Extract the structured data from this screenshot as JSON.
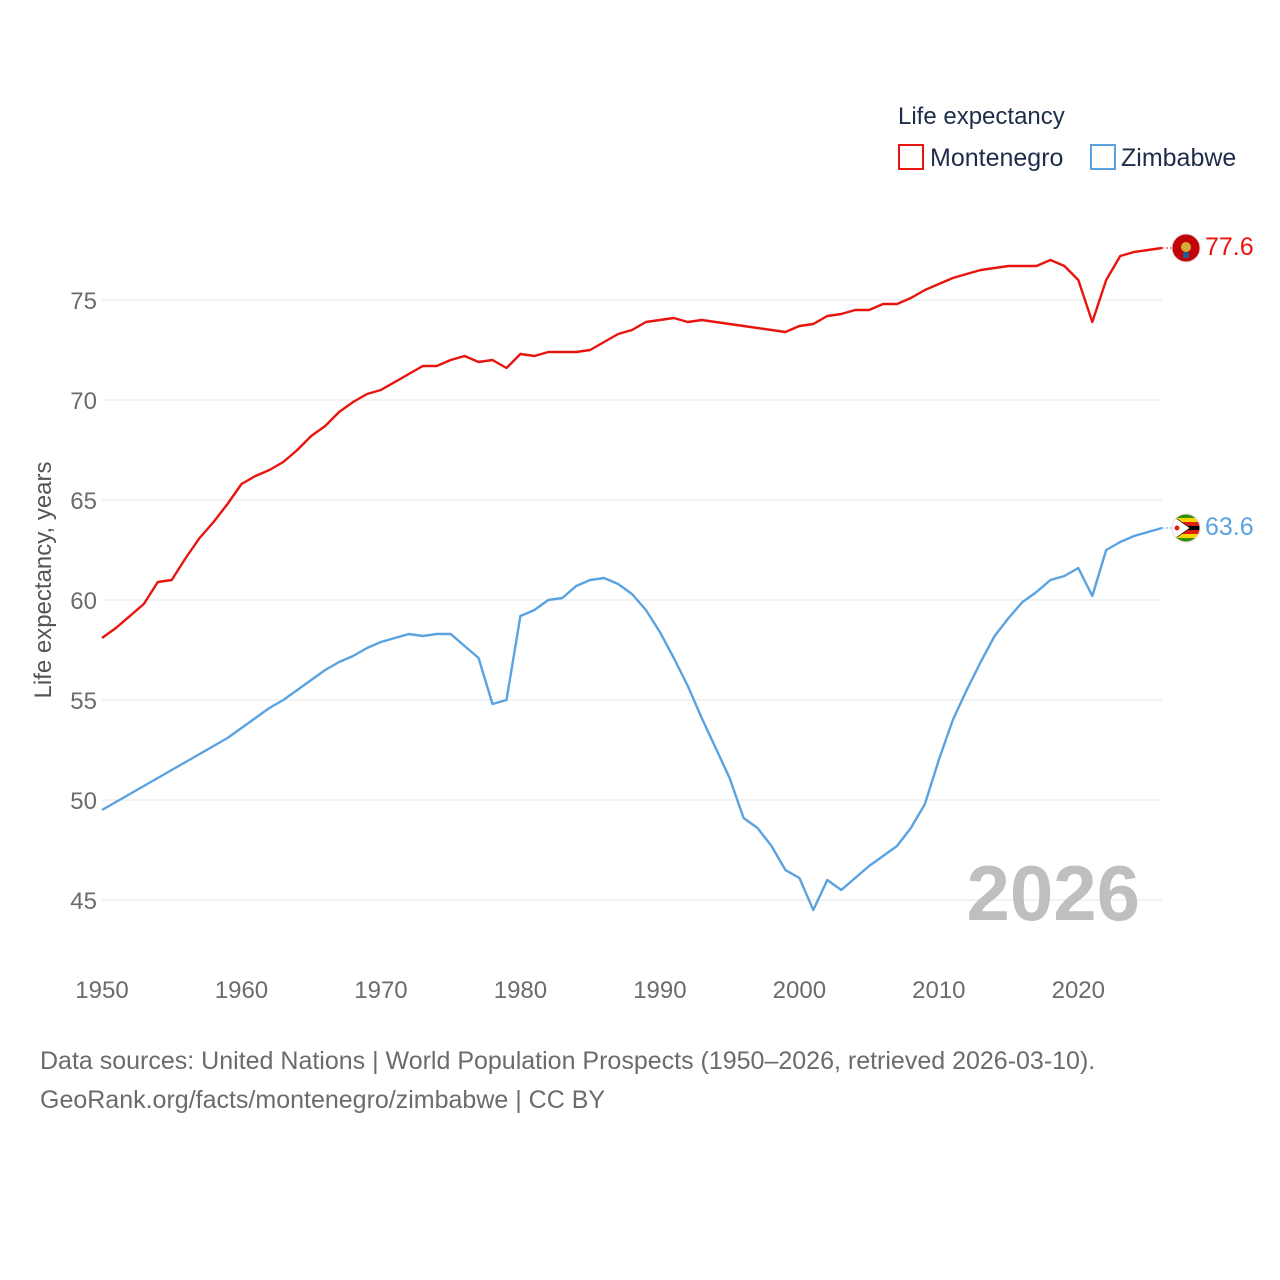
{
  "chart_data": {
    "type": "line",
    "legend_title": "Life expectancy",
    "ylabel": "Life expectancy, years",
    "xlim": [
      1950,
      2026
    ],
    "ylim": [
      44,
      79
    ],
    "yticks": [
      45,
      50,
      55,
      60,
      65,
      70,
      75
    ],
    "xticks": [
      1950,
      1960,
      1970,
      1980,
      1990,
      2000,
      2010,
      2020
    ],
    "current_year": "2026",
    "x": [
      1950,
      1951,
      1952,
      1953,
      1954,
      1955,
      1956,
      1957,
      1958,
      1959,
      1960,
      1961,
      1962,
      1963,
      1964,
      1965,
      1966,
      1967,
      1968,
      1969,
      1970,
      1971,
      1972,
      1973,
      1974,
      1975,
      1976,
      1977,
      1978,
      1979,
      1980,
      1981,
      1982,
      1983,
      1984,
      1985,
      1986,
      1987,
      1988,
      1989,
      1990,
      1991,
      1992,
      1993,
      1994,
      1995,
      1996,
      1997,
      1998,
      1999,
      2000,
      2001,
      2002,
      2003,
      2004,
      2005,
      2006,
      2007,
      2008,
      2009,
      2010,
      2011,
      2012,
      2013,
      2014,
      2015,
      2016,
      2017,
      2018,
      2019,
      2020,
      2021,
      2022,
      2023,
      2024,
      2025,
      2026
    ],
    "series": [
      {
        "name": "Montenegro",
        "color": "#e8140e",
        "end_label": "77.6",
        "flag_icon": "montenegro-flag-icon",
        "values": [
          58.1,
          58.6,
          59.2,
          59.8,
          60.9,
          61.0,
          62.1,
          63.1,
          63.9,
          64.8,
          65.8,
          66.2,
          66.5,
          66.9,
          67.5,
          68.2,
          68.7,
          69.4,
          69.9,
          70.3,
          70.5,
          70.9,
          71.3,
          71.7,
          71.7,
          72.0,
          72.2,
          71.9,
          72.0,
          71.6,
          72.3,
          72.2,
          72.4,
          72.4,
          72.4,
          72.5,
          72.9,
          73.3,
          73.5,
          73.9,
          74.0,
          74.1,
          73.9,
          74.0,
          73.9,
          73.8,
          73.7,
          73.6,
          73.5,
          73.4,
          73.7,
          73.8,
          74.2,
          74.3,
          74.5,
          74.5,
          74.8,
          74.8,
          75.1,
          75.5,
          75.8,
          76.1,
          76.3,
          76.5,
          76.6,
          76.7,
          76.7,
          76.7,
          77.0,
          76.7,
          76.0,
          73.9,
          76.0,
          77.2,
          77.4,
          77.5,
          77.6
        ]
      },
      {
        "name": "Zimbabwe",
        "color": "#5ba3e0",
        "end_label": "63.6",
        "flag_icon": "zimbabwe-flag-icon",
        "values": [
          49.5,
          49.9,
          50.3,
          50.7,
          51.1,
          51.5,
          51.9,
          52.3,
          52.7,
          53.1,
          53.6,
          54.1,
          54.6,
          55.0,
          55.5,
          56.0,
          56.5,
          56.9,
          57.2,
          57.6,
          57.9,
          58.1,
          58.3,
          58.2,
          58.3,
          58.3,
          57.7,
          57.1,
          54.8,
          55.0,
          59.2,
          59.5,
          60.0,
          60.1,
          60.7,
          61.0,
          61.1,
          60.8,
          60.3,
          59.5,
          58.4,
          57.1,
          55.7,
          54.1,
          52.6,
          51.1,
          49.1,
          48.6,
          47.7,
          46.5,
          46.1,
          44.5,
          46.0,
          45.5,
          46.1,
          46.7,
          47.2,
          47.7,
          48.6,
          49.8,
          52.0,
          54.0,
          55.5,
          56.9,
          58.2,
          59.1,
          59.9,
          60.4,
          61.0,
          61.2,
          61.6,
          60.2,
          62.5,
          62.9,
          63.2,
          63.4,
          63.6
        ]
      }
    ]
  },
  "footer": {
    "source_line": "Data sources: United Nations | World Population Prospects (1950–2026, retrieved 2026-03-10).",
    "credit_line": "GeoRank.org/facts/montenegro/zimbabwe | CC BY"
  }
}
